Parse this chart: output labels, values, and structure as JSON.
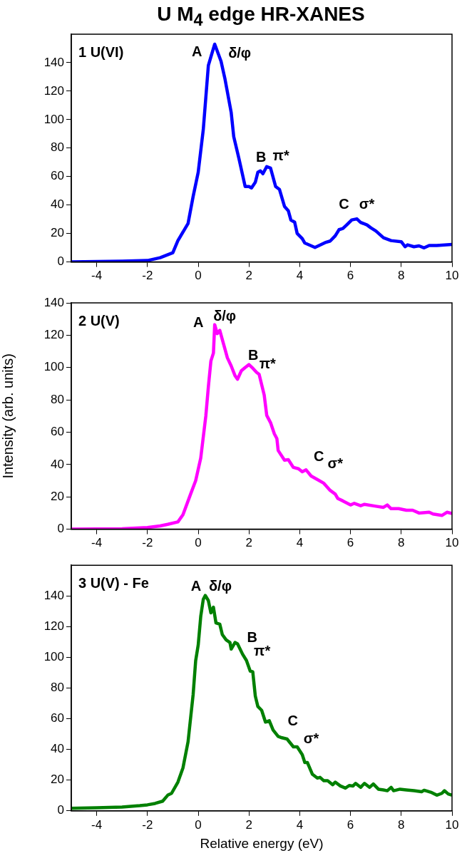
{
  "chart_data": [
    {
      "type": "line",
      "title": "U M$_{4}$ edge HR-XANES",
      "x": [
        -5,
        -3,
        -2,
        -1.5,
        -1,
        -0.8,
        -0.4,
        -0.2,
        0,
        0.2,
        0.4,
        0.65,
        0.9,
        1.05,
        1.3,
        1.4,
        1.6,
        1.85,
        2.0,
        2.1,
        2.25,
        2.35,
        2.45,
        2.55,
        2.7,
        2.85,
        3.05,
        3.2,
        3.4,
        3.55,
        3.65,
        3.8,
        3.9,
        4.1,
        4.2,
        4.6,
        5.0,
        5.2,
        5.4,
        5.55,
        5.7,
        5.85,
        6.05,
        6.25,
        6.4,
        6.65,
        6.8,
        7.0,
        7.3,
        7.6,
        8.0,
        8.15,
        8.25,
        8.5,
        8.7,
        8.9,
        9.1,
        9.4,
        10
      ],
      "series": [
        {
          "color": "#0000ff",
          "values": [
            0,
            0.5,
            1,
            3,
            6.5,
            15,
            27,
            46,
            63,
            93,
            138,
            153,
            141,
            129,
            105,
            88,
            73,
            53,
            53,
            52,
            56,
            63,
            64,
            62,
            67,
            66,
            53,
            51,
            39,
            36,
            29.5,
            28,
            20,
            16.4,
            13.3,
            10.2,
            13.6,
            14.7,
            18.4,
            22.7,
            23.5,
            26,
            29.5,
            30.3,
            27.8,
            26,
            24,
            21.8,
            17,
            15,
            14.2,
            10.7,
            12,
            10.7,
            11.3,
            9.9,
            11.6,
            11.6,
            12.3
          ]
        }
      ],
      "xlim": [
        -5,
        10
      ],
      "xticks": [
        -4,
        -2,
        0,
        2,
        4,
        6,
        8,
        10
      ],
      "ylim": [
        0,
        160
      ],
      "yticks": [
        0,
        20,
        40,
        60,
        80,
        100,
        120,
        140
      ],
      "grid": false,
      "annotations": [
        "1 U(VI)",
        {
          "text": "A",
          "x": 0.65,
          "y": 153
        },
        {
          "text": "δ/φ",
          "x": 0.65,
          "y": 153
        },
        {
          "text": "B",
          "x": 2.7,
          "y": 67
        },
        {
          "text": "π*",
          "x": 2.7,
          "y": 67
        },
        {
          "text": "C",
          "x": 6.25,
          "y": 30.3
        },
        {
          "text": "σ*",
          "x": 6.25,
          "y": 30.3
        }
      ]
    },
    {
      "type": "line",
      "ylabel": "Intensity (arb. units)",
      "x": [
        -5,
        -3,
        -2,
        -1.5,
        -1.2,
        -0.8,
        -0.6,
        -0.3,
        -0.1,
        0.1,
        0.3,
        0.4,
        0.5,
        0.6,
        0.65,
        0.75,
        0.85,
        1.0,
        1.15,
        1.3,
        1.45,
        1.55,
        1.7,
        1.85,
        2.0,
        2.15,
        2.3,
        2.4,
        2.6,
        2.7,
        2.85,
        3.0,
        3.1,
        3.15,
        3.4,
        3.55,
        3.75,
        3.95,
        4.1,
        4.25,
        4.45,
        4.7,
        4.95,
        5.2,
        5.4,
        5.5,
        5.7,
        6.0,
        6.15,
        6.4,
        6.55,
        7.0,
        7.3,
        7.45,
        7.6,
        7.9,
        8.2,
        8.45,
        8.7,
        9.1,
        9.25,
        9.6,
        9.8,
        10
      ],
      "series": [
        {
          "color": "#ff00ff",
          "values": [
            0,
            0.3,
            1,
            2,
            3,
            4.5,
            9,
            21.7,
            30,
            44,
            70,
            88,
            104,
            109,
            126.5,
            121,
            123,
            114.5,
            106,
            101,
            95,
            92.8,
            98,
            100,
            101.8,
            99.6,
            97,
            95.8,
            83,
            70.4,
            65.9,
            59,
            56,
            48.7,
            42.7,
            43,
            38.2,
            37.4,
            35.5,
            36.7,
            32.9,
            30.7,
            28.4,
            24,
            21.7,
            19,
            17.5,
            15,
            16,
            14.5,
            15.4,
            14.2,
            13.5,
            15,
            12.7,
            12.7,
            11.7,
            11.7,
            10,
            10.5,
            9.4,
            8.5,
            10.5,
            9.7
          ]
        }
      ],
      "xlim": [
        -5,
        10
      ],
      "xticks": [
        -4,
        -2,
        0,
        2,
        4,
        6,
        8,
        10
      ],
      "ylim": [
        0,
        140
      ],
      "yticks": [
        0,
        20,
        40,
        60,
        80,
        100,
        120,
        140
      ],
      "grid": false,
      "annotations": [
        "2 U(V)",
        {
          "text": "A",
          "x": 0.65,
          "y": 126.5
        },
        {
          "text": "δ/φ",
          "x": 0.65,
          "y": 126.5
        },
        {
          "text": "B",
          "x": 2.0,
          "y": 101.8
        },
        {
          "text": "π*",
          "x": 2.0,
          "y": 101.8
        },
        {
          "text": "C",
          "x": 4.7,
          "y": 30.7
        },
        {
          "text": "σ*",
          "x": 4.7,
          "y": 30.7
        }
      ]
    },
    {
      "type": "line",
      "xlabel": "Relative energy (eV)",
      "x": [
        -5,
        -4,
        -3,
        -2.3,
        -2,
        -1.7,
        -1.4,
        -1.2,
        -1.05,
        -0.8,
        -0.6,
        -0.4,
        -0.2,
        -0.1,
        0.0,
        0.1,
        0.2,
        0.28,
        0.4,
        0.5,
        0.6,
        0.7,
        0.85,
        0.95,
        1.1,
        1.25,
        1.3,
        1.45,
        1.55,
        1.75,
        1.9,
        2.05,
        2.15,
        2.25,
        2.35,
        2.5,
        2.65,
        2.8,
        2.95,
        3.15,
        3.3,
        3.5,
        3.75,
        3.9,
        4.1,
        4.2,
        4.3,
        4.5,
        4.7,
        4.8,
        4.95,
        5.1,
        5.3,
        5.4,
        5.6,
        5.8,
        5.95,
        6.1,
        6.2,
        6.4,
        6.55,
        6.75,
        6.9,
        7.1,
        7.3,
        7.45,
        7.6,
        7.7,
        7.95,
        8.2,
        8.5,
        8.8,
        8.9,
        9.2,
        9.4,
        9.6,
        9.7,
        9.85,
        10
      ],
      "series": [
        {
          "color": "#008000",
          "values": [
            1.7,
            2,
            2.5,
            3.4,
            3.9,
            4.8,
            6.3,
            10.2,
            11.4,
            18.7,
            28,
            45,
            75.7,
            97.8,
            108,
            126.7,
            137.8,
            140.3,
            137,
            129,
            132.7,
            122.4,
            121.6,
            114.8,
            111.4,
            109.7,
            105.4,
            109.7,
            108.8,
            102,
            98,
            91,
            90.6,
            74.8,
            68,
            65.5,
            57.8,
            58.7,
            52.7,
            48.5,
            47.6,
            46.8,
            41.7,
            41.7,
            36.6,
            31.5,
            31.5,
            23.8,
            21.3,
            21.8,
            19.6,
            19.6,
            17,
            18.7,
            16.2,
            14.8,
            16.5,
            16.2,
            17.9,
            15.3,
            17.9,
            15.3,
            17.5,
            14.1,
            13.6,
            13.1,
            15.3,
            13.1,
            14.1,
            13.6,
            13.1,
            12.4,
            13.4,
            11.9,
            10.2,
            11.4,
            13.1,
            11,
            10.2
          ]
        }
      ],
      "xlim": [
        -5,
        10
      ],
      "xticks": [
        -4,
        -2,
        0,
        2,
        4,
        6,
        8,
        10
      ],
      "ylim": [
        0,
        160
      ],
      "yticks": [
        0,
        20,
        40,
        60,
        80,
        100,
        120,
        140
      ],
      "grid": false,
      "annotations": [
        "3 U(V) - Fe",
        {
          "text": "A",
          "x": 0.28,
          "y": 140.3
        },
        {
          "text": "δ/φ",
          "x": 0.28,
          "y": 140.3
        },
        {
          "text": "B",
          "x": 1.9,
          "y": 98
        },
        {
          "text": "π*",
          "x": 1.9,
          "y": 98
        },
        {
          "text": "C",
          "x": 3.5,
          "y": 46.8
        },
        {
          "text": "σ*",
          "x": 3.5,
          "y": 46.8
        }
      ]
    }
  ]
}
